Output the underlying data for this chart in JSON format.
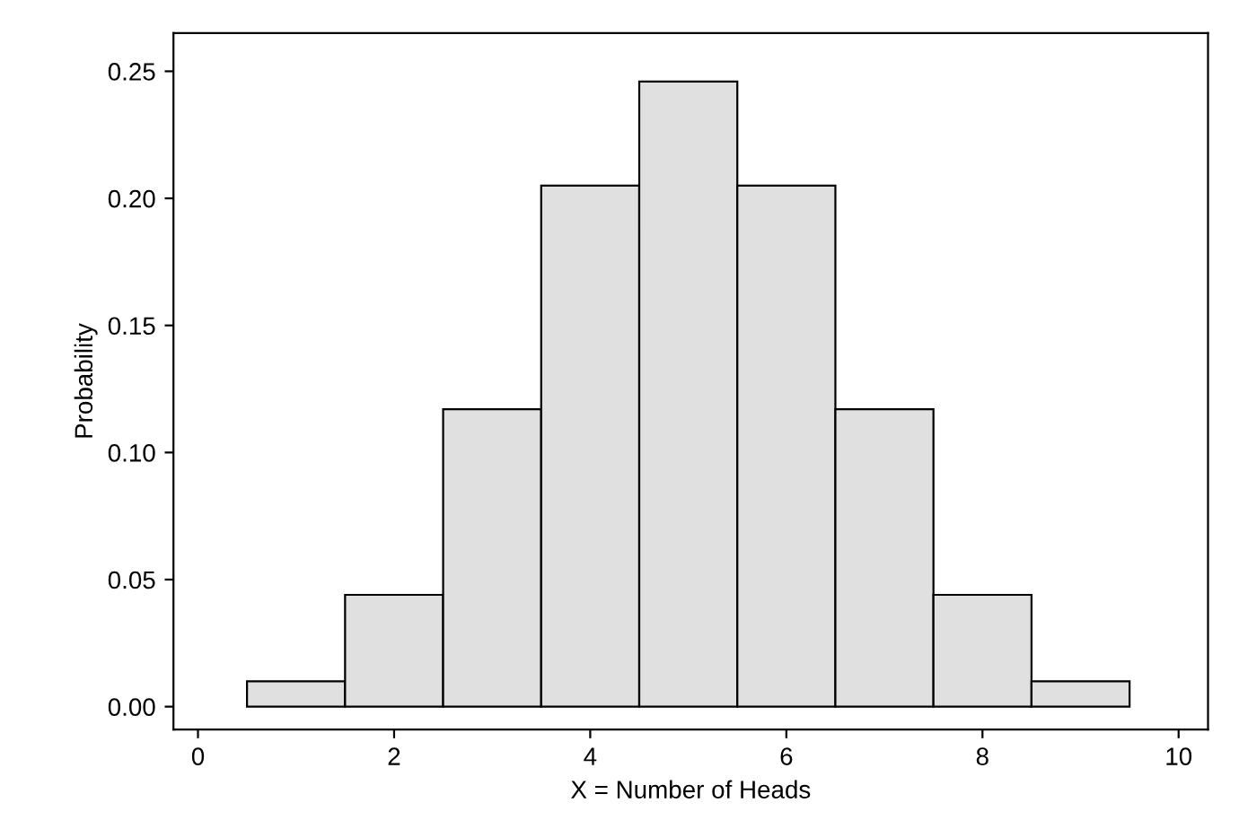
{
  "chart_data": {
    "type": "histogram",
    "xlabel": "X = Number of Heads",
    "ylabel": "Probability",
    "bins": [
      0.5,
      1.5,
      2.5,
      3.5,
      4.5,
      5.5,
      6.5,
      7.5,
      8.5,
      9.5
    ],
    "values": [
      0.01,
      0.044,
      0.117,
      0.205,
      0.246,
      0.205,
      0.117,
      0.044,
      0.01
    ],
    "color": "#e0e0e0",
    "xlim": [
      -0.25,
      10.3
    ],
    "ylim": [
      -0.009,
      0.265
    ],
    "xticks": [
      0,
      2,
      4,
      6,
      8,
      10
    ],
    "yticks": [
      {
        "value": 0,
        "label": "0.00"
      },
      {
        "value": 0.05,
        "label": "0.05"
      },
      {
        "value": 0.1,
        "label": "0.10"
      },
      {
        "value": 0.15,
        "label": "0.15"
      },
      {
        "value": 0.2,
        "label": "0.20"
      },
      {
        "value": 0.25,
        "label": "0.25"
      }
    ],
    "grid": false,
    "legend": false
  }
}
